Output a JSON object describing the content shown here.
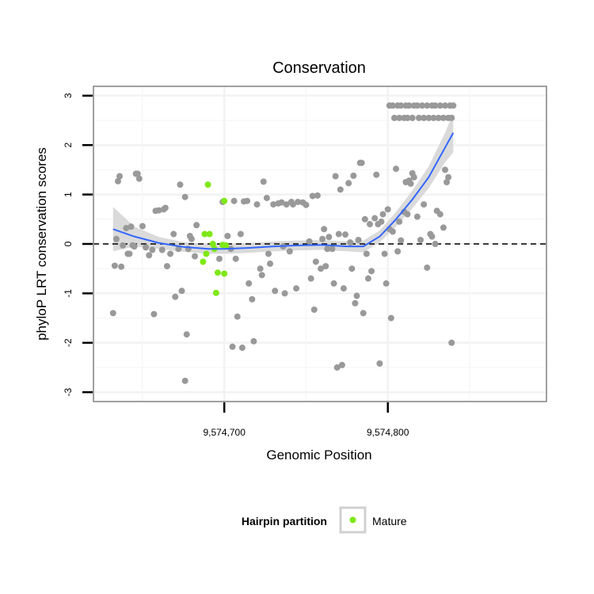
{
  "chart_data": {
    "type": "scatter",
    "title": "Conservation",
    "xlabel": "Genomic Position",
    "ylabel": "phyloP LRT conservation scores",
    "xlim": [
      9574620,
      9574897
    ],
    "ylim": [
      -3,
      3
    ],
    "x_ticks": [
      {
        "value": 9574700,
        "label": "9,574,700"
      },
      {
        "value": 9574800,
        "label": "9,574,800"
      }
    ],
    "y_ticks": [
      {
        "value": -3,
        "label": "-3"
      },
      {
        "value": -2,
        "label": "-2"
      },
      {
        "value": -1,
        "label": "-1"
      },
      {
        "value": 0,
        "label": "0"
      },
      {
        "value": 1,
        "label": "1"
      },
      {
        "value": 2,
        "label": "2"
      },
      {
        "value": 3,
        "label": "3"
      }
    ],
    "grid": true,
    "reference_line": {
      "y": 0,
      "style": "dashed",
      "color": "#000000"
    },
    "legend": {
      "title": "Hairpin partition",
      "position": "bottom",
      "entries": [
        "Mature"
      ]
    },
    "colors": {
      "other": "#999999",
      "mature": "#7FE817",
      "smooth": "#3366FF",
      "ribbon": "#D3D3D3",
      "panel_border": "#808080"
    },
    "series": [
      {
        "name": "",
        "color": "#999999",
        "points": [
          [
            9574632,
            -1.4
          ],
          [
            9574633,
            -0.44
          ],
          [
            9574634,
            0.1
          ],
          [
            9574635,
            1.27
          ],
          [
            9574636,
            1.37
          ],
          [
            9574637,
            -0.46
          ],
          [
            9574638,
            -0.03
          ],
          [
            9574640,
            0.32
          ],
          [
            9574641,
            -0.2
          ],
          [
            9574642,
            -0.2
          ],
          [
            9574643,
            0.35
          ],
          [
            9574644,
            -0.03
          ],
          [
            9574645,
            -0.05
          ],
          [
            9574646,
            1.42
          ],
          [
            9574647,
            1.42
          ],
          [
            9574648,
            1.32
          ],
          [
            9574650,
            0.36
          ],
          [
            9574652,
            -0.07
          ],
          [
            9574654,
            -0.23
          ],
          [
            9574656,
            -0.12
          ],
          [
            9574657,
            -1.42
          ],
          [
            9574658,
            0.67
          ],
          [
            9574660,
            0.68
          ],
          [
            9574662,
            -0.12
          ],
          [
            9574663,
            0.7
          ],
          [
            9574664,
            0.73
          ],
          [
            9574665,
            -0.45
          ],
          [
            9574667,
            -0.2
          ],
          [
            9574669,
            0.2
          ],
          [
            9574670,
            -1.07
          ],
          [
            9574672,
            -0.1
          ],
          [
            9574673,
            1.2
          ],
          [
            9574674,
            -0.95
          ],
          [
            9574676,
            0.95
          ],
          [
            9574677,
            -1.83
          ],
          [
            9574678,
            -0.1
          ],
          [
            9574679,
            0.16
          ],
          [
            9574680,
            0.1
          ],
          [
            9574682,
            -0.25
          ],
          [
            9574683,
            0.38
          ],
          [
            9574676,
            -2.77
          ],
          [
            9574697,
            -0.3
          ],
          [
            9574699,
            0.85
          ],
          [
            9574702,
            0.16
          ],
          [
            9574704,
            -0.1
          ],
          [
            9574705,
            -2.08
          ],
          [
            9574706,
            0.87
          ],
          [
            9574707,
            -0.3
          ],
          [
            9574708,
            -1.47
          ],
          [
            9574710,
            0.2
          ],
          [
            9574711,
            -2.1
          ],
          [
            9574712,
            0.86
          ],
          [
            9574714,
            0.87
          ],
          [
            9574715,
            -0.8
          ],
          [
            9574717,
            -1.12
          ],
          [
            9574718,
            -1.97
          ],
          [
            9574720,
            0.8
          ],
          [
            9574722,
            -0.5
          ],
          [
            9574723,
            -0.63
          ],
          [
            9574724,
            1.26
          ],
          [
            9574726,
            0.93
          ],
          [
            9574727,
            -0.2
          ],
          [
            9574728,
            -0.4
          ],
          [
            9574730,
            0.8
          ],
          [
            9574731,
            -0.95
          ],
          [
            9574733,
            0.82
          ],
          [
            9574735,
            0.84
          ],
          [
            9574736,
            -0.05
          ],
          [
            9574737,
            -1.0
          ],
          [
            9574738,
            0.8
          ],
          [
            9574740,
            -0.15
          ],
          [
            9574741,
            0.85
          ],
          [
            9574742,
            0.8
          ],
          [
            9574744,
            -0.9
          ],
          [
            9574745,
            0.85
          ],
          [
            9574748,
            0.84
          ],
          [
            9574750,
            0.79
          ],
          [
            9574752,
            0.05
          ],
          [
            9574753,
            -0.7
          ],
          [
            9574754,
            0.97
          ],
          [
            9574755,
            -1.33
          ],
          [
            9574756,
            -0.36
          ],
          [
            9574757,
            0.98
          ],
          [
            9574759,
            -0.5
          ],
          [
            9574760,
            0.1
          ],
          [
            9574761,
            0.3
          ],
          [
            9574762,
            -0.45
          ],
          [
            9574763,
            -0.1
          ],
          [
            9574764,
            0.14
          ],
          [
            9574766,
            -0.1
          ],
          [
            9574767,
            -0.8
          ],
          [
            9574768,
            1.37
          ],
          [
            9574769,
            -2.5
          ],
          [
            9574770,
            0.2
          ],
          [
            9574771,
            1.1
          ],
          [
            9574772,
            -2.45
          ],
          [
            9574773,
            -0.9
          ],
          [
            9574774,
            0.19
          ],
          [
            9574776,
            1.23
          ],
          [
            9574777,
            0.03
          ],
          [
            9574778,
            -0.5
          ],
          [
            9574779,
            1.38
          ],
          [
            9574780,
            -1.2
          ],
          [
            9574781,
            -1.05
          ],
          [
            9574782,
            0.08
          ],
          [
            9574783,
            1.64
          ],
          [
            9574784,
            1.64
          ],
          [
            9574785,
            -1.4
          ],
          [
            9574786,
            0.5
          ],
          [
            9574787,
            -0.2
          ],
          [
            9574788,
            -0.7
          ],
          [
            9574789,
            0.4
          ],
          [
            9574790,
            -0.55
          ],
          [
            9574792,
            0.52
          ],
          [
            9574793,
            1.4
          ],
          [
            9574794,
            0.4
          ],
          [
            9574795,
            -2.42
          ],
          [
            9574796,
            0.45
          ],
          [
            9574797,
            0.6
          ],
          [
            9574798,
            -0.2
          ],
          [
            9574799,
            -0.8
          ],
          [
            9574800,
            0.7
          ],
          [
            9574801,
            0.3
          ],
          [
            9574802,
            -1.5
          ],
          [
            9574803,
            0.25
          ],
          [
            9574805,
            1.52
          ],
          [
            9574806,
            -0.15
          ],
          [
            9574807,
            0.45
          ],
          [
            9574808,
            0.07
          ],
          [
            9574810,
            0.65
          ],
          [
            9574811,
            1.25
          ],
          [
            9574812,
            0.6
          ],
          [
            9574813,
            1.28
          ],
          [
            9574814,
            1.22
          ],
          [
            9574815,
            1.43
          ],
          [
            9574816,
            1.35
          ],
          [
            9574818,
            0.55
          ],
          [
            9574820,
            0.08
          ],
          [
            9574822,
            0.8
          ],
          [
            9574824,
            -0.48
          ],
          [
            9574826,
            0.2
          ],
          [
            9574827,
            0.15
          ],
          [
            9574829,
            0.0
          ],
          [
            9574830,
            0.67
          ],
          [
            9574832,
            0.6
          ],
          [
            9574834,
            0.33
          ],
          [
            9574835,
            1.5
          ],
          [
            9574836,
            1.25
          ],
          [
            9574837,
            1.35
          ],
          [
            9574839,
            -2.0
          ],
          [
            9574801,
            2.8
          ],
          [
            9574803,
            2.8
          ],
          [
            9574806,
            2.8
          ],
          [
            9574808,
            2.8
          ],
          [
            9574811,
            2.8
          ],
          [
            9574813,
            2.8
          ],
          [
            9574816,
            2.8
          ],
          [
            9574818,
            2.8
          ],
          [
            9574821,
            2.8
          ],
          [
            9574824,
            2.8
          ],
          [
            9574827,
            2.8
          ],
          [
            9574829,
            2.8
          ],
          [
            9574832,
            2.8
          ],
          [
            9574835,
            2.8
          ],
          [
            9574838,
            2.8
          ],
          [
            9574840,
            2.8
          ],
          [
            9574804,
            2.55
          ],
          [
            9574807,
            2.55
          ],
          [
            9574810,
            2.55
          ],
          [
            9574812,
            2.55
          ],
          [
            9574815,
            2.55
          ],
          [
            9574819,
            2.55
          ],
          [
            9574822,
            2.55
          ],
          [
            9574825,
            2.55
          ],
          [
            9574828,
            2.55
          ],
          [
            9574831,
            2.55
          ],
          [
            9574834,
            2.55
          ],
          [
            9574837,
            2.55
          ],
          [
            9574839,
            2.55
          ]
        ]
      },
      {
        "name": "Mature",
        "color": "#7FE817",
        "points": [
          [
            9574690,
            1.2
          ],
          [
            9574700,
            0.87
          ],
          [
            9574688,
            0.2
          ],
          [
            9574691,
            0.2
          ],
          [
            9574687,
            -0.36
          ],
          [
            9574689,
            -0.2
          ],
          [
            9574693,
            0.0
          ],
          [
            9574696,
            -0.58
          ],
          [
            9574700,
            -0.6
          ],
          [
            9574695,
            -0.99
          ],
          [
            9574699,
            -0.02
          ],
          [
            9574701,
            -0.03
          ],
          [
            9574694,
            -0.1
          ]
        ]
      }
    ],
    "smooth": {
      "x": [
        9574632,
        9574645,
        9574660,
        9574675,
        9574690,
        9574700,
        9574715,
        9574730,
        9574745,
        9574760,
        9574775,
        9574785,
        9574795,
        9574805,
        9574815,
        9574825,
        9574835,
        9574840
      ],
      "y": [
        0.3,
        0.15,
        0.02,
        -0.06,
        -0.1,
        -0.1,
        -0.08,
        -0.05,
        -0.03,
        -0.02,
        -0.05,
        -0.05,
        0.15,
        0.5,
        0.9,
        1.35,
        1.95,
        2.25
      ],
      "se": [
        0.45,
        0.2,
        0.12,
        0.1,
        0.1,
        0.1,
        0.1,
        0.1,
        0.1,
        0.1,
        0.1,
        0.12,
        0.12,
        0.15,
        0.18,
        0.22,
        0.3,
        0.4
      ]
    }
  }
}
